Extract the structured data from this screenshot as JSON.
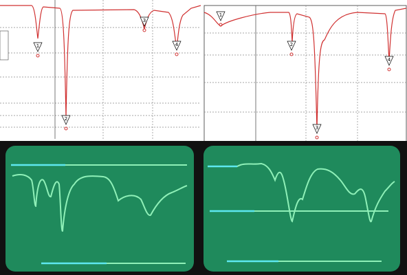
{
  "panels": [
    {
      "markers": [
        "1",
        "2",
        "3",
        "4"
      ]
    },
    {
      "markers": [
        "1",
        "2",
        "3",
        "4"
      ]
    }
  ]
}
